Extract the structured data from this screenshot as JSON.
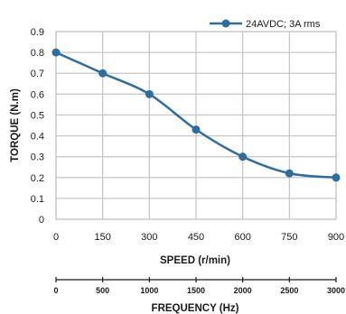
{
  "chart_data": {
    "type": "line",
    "title": "",
    "xlabel": "SPEED (r/min)",
    "ylabel": "TORQUE (N.m)",
    "x": [
      0,
      150,
      300,
      450,
      600,
      750,
      900
    ],
    "x_ticks": [
      "0",
      "150",
      "300",
      "450",
      "600",
      "750",
      "900"
    ],
    "xlim": [
      0,
      900
    ],
    "y_ticks": [
      "0",
      "0.1",
      "0.2",
      "0.3",
      "0.4",
      "0.5",
      "0.6",
      "0.7",
      "0.8",
      "0.9"
    ],
    "ylim": [
      0,
      0.9
    ],
    "grid": true,
    "legend_position": "top-right",
    "series": [
      {
        "name": "24AVDC; 3A rms",
        "color": "#2e6e9e",
        "values": [
          0.8,
          0.7,
          0.6,
          0.43,
          0.3,
          0.22,
          0.2
        ]
      }
    ],
    "secondary_axis": {
      "label": "FREQUENCY (Hz)",
      "ticks": [
        "0",
        "500",
        "1000",
        "1500",
        "2000",
        "2500",
        "3000"
      ],
      "range": [
        0,
        3000
      ]
    }
  }
}
